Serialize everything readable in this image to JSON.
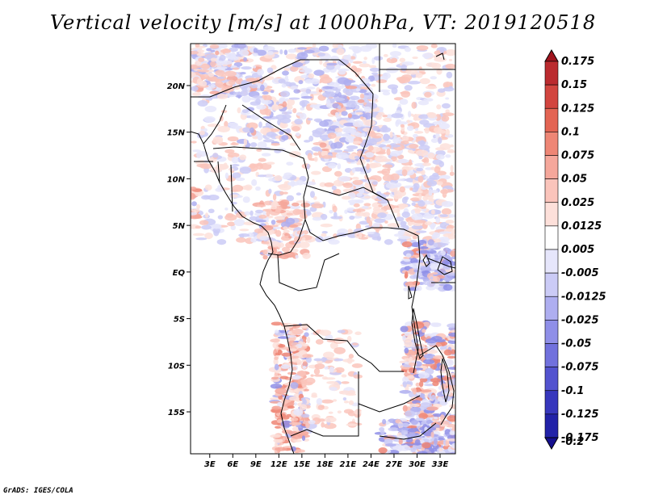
{
  "title": "Vertical velocity [m/s] at 1000hPa, VT: 2019120518",
  "credit": "GrADS: IGES/COLA",
  "map": {
    "lon_labels": [
      "3E",
      "6E",
      "9E",
      "12E",
      "15E",
      "18E",
      "21E",
      "24E",
      "27E",
      "30E",
      "33E"
    ],
    "lon_values": [
      3,
      6,
      9,
      12,
      15,
      18,
      21,
      24,
      27,
      30,
      33
    ],
    "lat_labels": [
      "20N",
      "15N",
      "10N",
      "5N",
      "EQ",
      "5S",
      "10S",
      "15S"
    ],
    "lat_values": [
      20,
      15,
      10,
      5,
      0,
      -5,
      -10,
      -15
    ],
    "lon_range": [
      0.5,
      35
    ],
    "lat_range": [
      -19.5,
      24.5
    ]
  },
  "colorbar": {
    "labels": [
      "0.175",
      "0.15",
      "0.125",
      "0.1",
      "0.075",
      "0.05",
      "0.025",
      "0.0125",
      "0.005",
      "-0.005",
      "-0.0125",
      "-0.025",
      "-0.05",
      "-0.075",
      "-0.1",
      "-0.125",
      "-0.175",
      "-0.2"
    ],
    "colors": [
      "#a0141e",
      "#bb2b2f",
      "#d2453f",
      "#e36453",
      "#ee8675",
      "#f5a79b",
      "#fac4bb",
      "#fde0da",
      "#ffffff",
      "#e6e6fb",
      "#cbcbf6",
      "#aeaef0",
      "#8f8fe8",
      "#7171dd",
      "#5353cf",
      "#3737bd",
      "#2222a8",
      "#150f8f"
    ]
  }
}
